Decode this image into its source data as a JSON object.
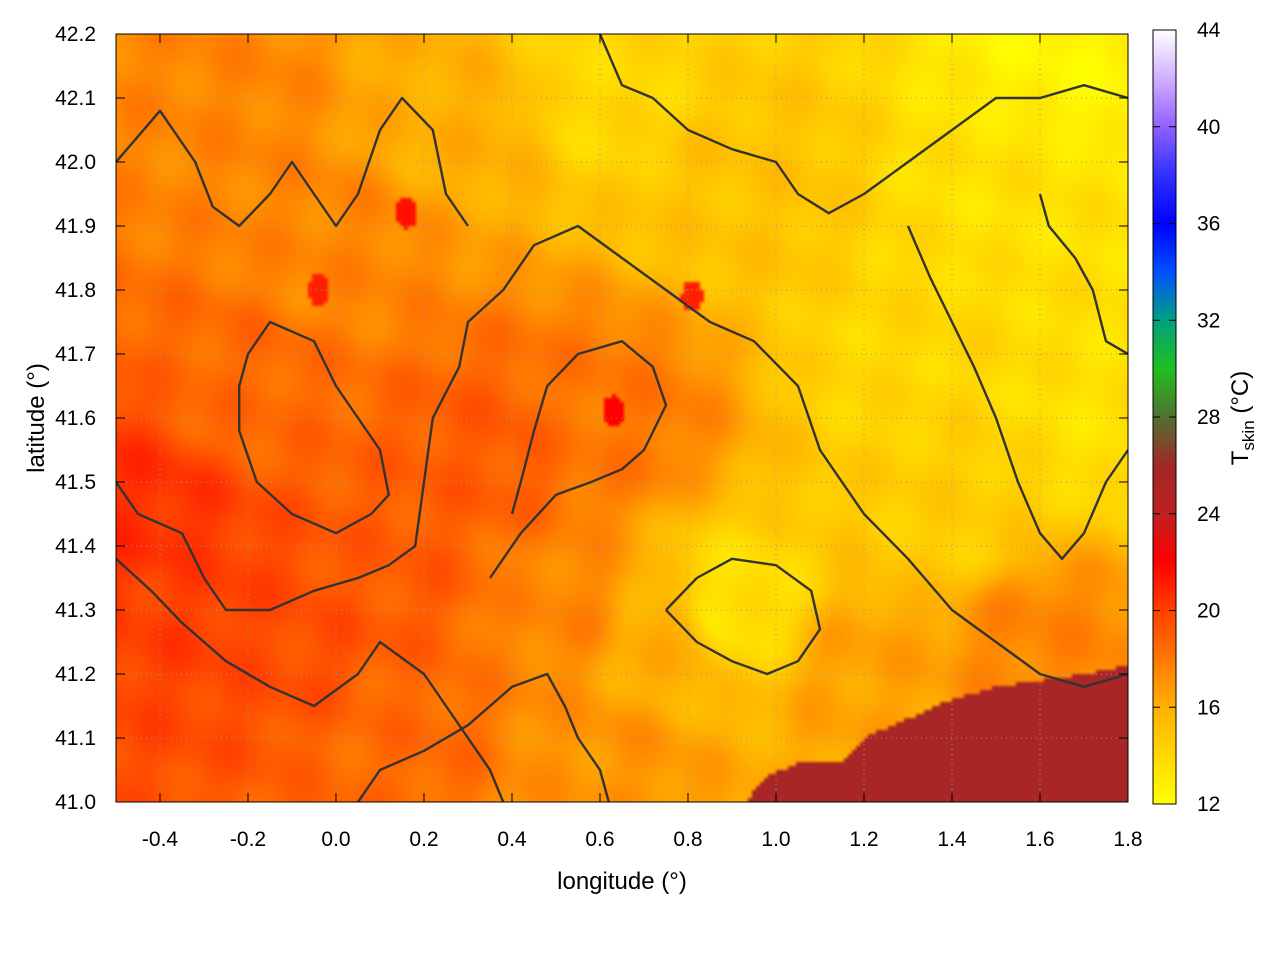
{
  "chart_data": {
    "type": "heatmap",
    "title": "",
    "xlabel": "longitude (°)",
    "ylabel": "latitude (°)",
    "xlim": [
      -0.5,
      1.8
    ],
    "ylim": [
      41.0,
      42.2
    ],
    "xticks": [
      -0.4,
      -0.2,
      0.0,
      0.2,
      0.4,
      0.6,
      0.8,
      1.0,
      1.2,
      1.4,
      1.6,
      1.8
    ],
    "yticks": [
      41.0,
      41.1,
      41.2,
      41.3,
      41.4,
      41.5,
      41.6,
      41.7,
      41.8,
      41.9,
      42.0,
      42.1,
      42.2
    ],
    "xtick_labels": [
      "-0.4",
      "-0.2",
      "0.0",
      "0.2",
      "0.4",
      "0.6",
      "0.8",
      "1.0",
      "1.2",
      "1.4",
      "1.6",
      "1.8"
    ],
    "ytick_labels": [
      "41.0",
      "41.1",
      "41.2",
      "41.3",
      "41.4",
      "41.5",
      "41.6",
      "41.7",
      "41.8",
      "41.9",
      "42.0",
      "42.1",
      "42.2"
    ],
    "grid": true,
    "colorbar": {
      "label_main": "T",
      "label_sub": "skin",
      "label_unit": " (°C)",
      "range": [
        12,
        44
      ],
      "ticks": [
        12,
        16,
        20,
        24,
        28,
        32,
        36,
        40,
        44
      ],
      "tick_labels": [
        "12",
        "16",
        "20",
        "24",
        "28",
        "32",
        "36",
        "40",
        "44"
      ],
      "stops": [
        {
          "v": 12,
          "color": "#ffff00"
        },
        {
          "v": 16,
          "color": "#ffb000"
        },
        {
          "v": 20,
          "color": "#ff4000"
        },
        {
          "v": 22,
          "color": "#ff0000"
        },
        {
          "v": 24,
          "color": "#c02020"
        },
        {
          "v": 26,
          "color": "#a02828"
        },
        {
          "v": 28,
          "color": "#507030"
        },
        {
          "v": 30,
          "color": "#20c020"
        },
        {
          "v": 32,
          "color": "#00a080"
        },
        {
          "v": 34,
          "color": "#0050ff"
        },
        {
          "v": 36,
          "color": "#0000ff"
        },
        {
          "v": 38,
          "color": "#3030ff"
        },
        {
          "v": 40,
          "color": "#9060ff"
        },
        {
          "v": 42,
          "color": "#d0b0ff"
        },
        {
          "v": 44,
          "color": "#ffffff"
        }
      ]
    },
    "field_samples": [
      {
        "lon": -0.45,
        "lat": 41.45,
        "t": 20.5
      },
      {
        "lon": -0.3,
        "lat": 41.3,
        "t": 20.0
      },
      {
        "lon": -0.1,
        "lat": 41.25,
        "t": 19.5
      },
      {
        "lon": 0.15,
        "lat": 41.35,
        "t": 19.0
      },
      {
        "lon": 0.35,
        "lat": 41.55,
        "t": 19.0
      },
      {
        "lon": 0.6,
        "lat": 41.6,
        "t": 18.0
      },
      {
        "lon": -0.2,
        "lat": 41.65,
        "t": 18.5
      },
      {
        "lon": 0.0,
        "lat": 41.85,
        "t": 17.5
      },
      {
        "lon": -0.3,
        "lat": 42.1,
        "t": 17.5
      },
      {
        "lon": 0.3,
        "lat": 42.05,
        "t": 16.0
      },
      {
        "lon": 0.5,
        "lat": 41.3,
        "t": 17.5
      },
      {
        "lon": 0.75,
        "lat": 41.25,
        "t": 16.0
      },
      {
        "lon": 0.9,
        "lat": 41.3,
        "t": 13.5
      },
      {
        "lon": 0.6,
        "lat": 42.1,
        "t": 14.0
      },
      {
        "lon": 0.9,
        "lat": 41.95,
        "t": 15.0
      },
      {
        "lon": 1.3,
        "lat": 41.7,
        "t": 14.0
      },
      {
        "lon": 1.55,
        "lat": 41.95,
        "t": 13.5
      },
      {
        "lon": 1.7,
        "lat": 42.15,
        "t": 12.5
      },
      {
        "lon": 1.4,
        "lat": 41.45,
        "t": 14.5
      },
      {
        "lon": 1.2,
        "lat": 41.2,
        "t": 16.5
      },
      {
        "lon": 1.6,
        "lat": 41.25,
        "t": 17.5
      },
      {
        "lon": 1.75,
        "lat": 41.6,
        "t": 13.5
      },
      {
        "lon": 0.15,
        "lat": 41.1,
        "t": 18.5
      },
      {
        "lon": 0.6,
        "lat": 41.05,
        "t": 17.0
      }
    ],
    "sea_region": {
      "t": 25.5,
      "boundary": [
        [
          0.93,
          41.0
        ],
        [
          0.98,
          41.04
        ],
        [
          1.05,
          41.06
        ],
        [
          1.15,
          41.06
        ],
        [
          1.2,
          41.1
        ],
        [
          1.3,
          41.13
        ],
        [
          1.4,
          41.16
        ],
        [
          1.5,
          41.18
        ],
        [
          1.6,
          41.19
        ],
        [
          1.7,
          41.2
        ],
        [
          1.78,
          41.21
        ],
        [
          1.8,
          41.21
        ],
        [
          1.8,
          41.0
        ]
      ]
    },
    "contours": [
      [
        [
          -0.5,
          42.0
        ],
        [
          -0.4,
          42.08
        ],
        [
          -0.32,
          42.0
        ],
        [
          -0.28,
          41.93
        ],
        [
          -0.22,
          41.9
        ],
        [
          -0.15,
          41.95
        ],
        [
          -0.1,
          42.0
        ],
        [
          -0.05,
          41.95
        ],
        [
          0.0,
          41.9
        ],
        [
          0.05,
          41.95
        ],
        [
          0.1,
          42.05
        ],
        [
          0.15,
          42.1
        ],
        [
          0.22,
          42.05
        ],
        [
          0.25,
          41.95
        ],
        [
          0.3,
          41.9
        ]
      ],
      [
        [
          -0.5,
          41.5
        ],
        [
          -0.45,
          41.45
        ],
        [
          -0.35,
          41.42
        ],
        [
          -0.3,
          41.35
        ],
        [
          -0.25,
          41.3
        ],
        [
          -0.15,
          41.3
        ],
        [
          -0.05,
          41.33
        ],
        [
          0.05,
          41.35
        ],
        [
          0.12,
          41.37
        ],
        [
          0.18,
          41.4
        ],
        [
          0.2,
          41.5
        ],
        [
          0.22,
          41.6
        ],
        [
          0.28,
          41.68
        ],
        [
          0.3,
          41.75
        ],
        [
          0.38,
          41.8
        ],
        [
          0.45,
          41.87
        ],
        [
          0.55,
          41.9
        ],
        [
          0.65,
          41.85
        ],
        [
          0.75,
          41.8
        ],
        [
          0.85,
          41.75
        ],
        [
          0.95,
          41.72
        ],
        [
          1.05,
          41.65
        ],
        [
          1.1,
          41.55
        ],
        [
          1.2,
          41.45
        ],
        [
          1.3,
          41.38
        ],
        [
          1.4,
          41.3
        ],
        [
          1.5,
          41.25
        ],
        [
          1.6,
          41.2
        ],
        [
          1.7,
          41.18
        ],
        [
          1.8,
          41.2
        ]
      ],
      [
        [
          -0.5,
          41.38
        ],
        [
          -0.42,
          41.33
        ],
        [
          -0.35,
          41.28
        ],
        [
          -0.25,
          41.22
        ],
        [
          -0.15,
          41.18
        ],
        [
          -0.05,
          41.15
        ],
        [
          0.05,
          41.2
        ],
        [
          0.1,
          41.25
        ],
        [
          0.2,
          41.2
        ],
        [
          0.25,
          41.15
        ],
        [
          0.3,
          41.1
        ],
        [
          0.35,
          41.05
        ],
        [
          0.38,
          41.0
        ]
      ],
      [
        [
          -0.2,
          41.7
        ],
        [
          -0.15,
          41.75
        ],
        [
          -0.05,
          41.72
        ],
        [
          0.0,
          41.65
        ],
        [
          0.05,
          41.6
        ],
        [
          0.1,
          41.55
        ],
        [
          0.12,
          41.48
        ],
        [
          0.08,
          41.45
        ],
        [
          0.0,
          41.42
        ],
        [
          -0.1,
          41.45
        ],
        [
          -0.18,
          41.5
        ],
        [
          -0.22,
          41.58
        ],
        [
          -0.22,
          41.65
        ],
        [
          -0.2,
          41.7
        ]
      ],
      [
        [
          0.35,
          41.35
        ],
        [
          0.42,
          41.42
        ],
        [
          0.5,
          41.48
        ],
        [
          0.58,
          41.5
        ],
        [
          0.65,
          41.52
        ],
        [
          0.7,
          41.55
        ],
        [
          0.75,
          41.62
        ],
        [
          0.72,
          41.68
        ],
        [
          0.65,
          41.72
        ],
        [
          0.55,
          41.7
        ],
        [
          0.48,
          41.65
        ],
        [
          0.45,
          41.58
        ],
        [
          0.42,
          41.5
        ],
        [
          0.4,
          41.45
        ]
      ],
      [
        [
          0.6,
          42.2
        ],
        [
          0.65,
          42.12
        ],
        [
          0.72,
          42.1
        ],
        [
          0.8,
          42.05
        ],
        [
          0.9,
          42.02
        ],
        [
          1.0,
          42.0
        ],
        [
          1.05,
          41.95
        ],
        [
          1.12,
          41.92
        ],
        [
          1.2,
          41.95
        ],
        [
          1.3,
          42.0
        ],
        [
          1.4,
          42.05
        ],
        [
          1.5,
          42.1
        ],
        [
          1.6,
          42.1
        ],
        [
          1.7,
          42.12
        ],
        [
          1.8,
          42.1
        ]
      ],
      [
        [
          0.75,
          41.3
        ],
        [
          0.82,
          41.35
        ],
        [
          0.9,
          41.38
        ],
        [
          1.0,
          41.37
        ],
        [
          1.08,
          41.33
        ],
        [
          1.1,
          41.27
        ],
        [
          1.05,
          41.22
        ],
        [
          0.98,
          41.2
        ],
        [
          0.9,
          41.22
        ],
        [
          0.82,
          41.25
        ],
        [
          0.75,
          41.3
        ]
      ],
      [
        [
          1.3,
          41.9
        ],
        [
          1.35,
          41.82
        ],
        [
          1.4,
          41.75
        ],
        [
          1.45,
          41.68
        ],
        [
          1.5,
          41.6
        ],
        [
          1.55,
          41.5
        ],
        [
          1.6,
          41.42
        ],
        [
          1.65,
          41.38
        ],
        [
          1.7,
          41.42
        ],
        [
          1.75,
          41.5
        ],
        [
          1.8,
          41.55
        ]
      ],
      [
        [
          0.05,
          41.0
        ],
        [
          0.1,
          41.05
        ],
        [
          0.2,
          41.08
        ],
        [
          0.3,
          41.12
        ],
        [
          0.4,
          41.18
        ],
        [
          0.48,
          41.2
        ],
        [
          0.52,
          41.15
        ],
        [
          0.55,
          41.1
        ],
        [
          0.6,
          41.05
        ],
        [
          0.62,
          41.0
        ]
      ],
      [
        [
          1.6,
          41.95
        ],
        [
          1.62,
          41.9
        ],
        [
          1.68,
          41.85
        ],
        [
          1.72,
          41.8
        ],
        [
          1.75,
          41.72
        ],
        [
          1.8,
          41.7
        ]
      ]
    ],
    "hot_spots": [
      {
        "lon": 0.63,
        "lat": 41.61,
        "t": 22.0
      },
      {
        "lon": 0.16,
        "lat": 41.92,
        "t": 21.5
      },
      {
        "lon": 0.81,
        "lat": 41.79,
        "t": 21.0
      },
      {
        "lon": -0.04,
        "lat": 41.8,
        "t": 21.0
      }
    ]
  }
}
